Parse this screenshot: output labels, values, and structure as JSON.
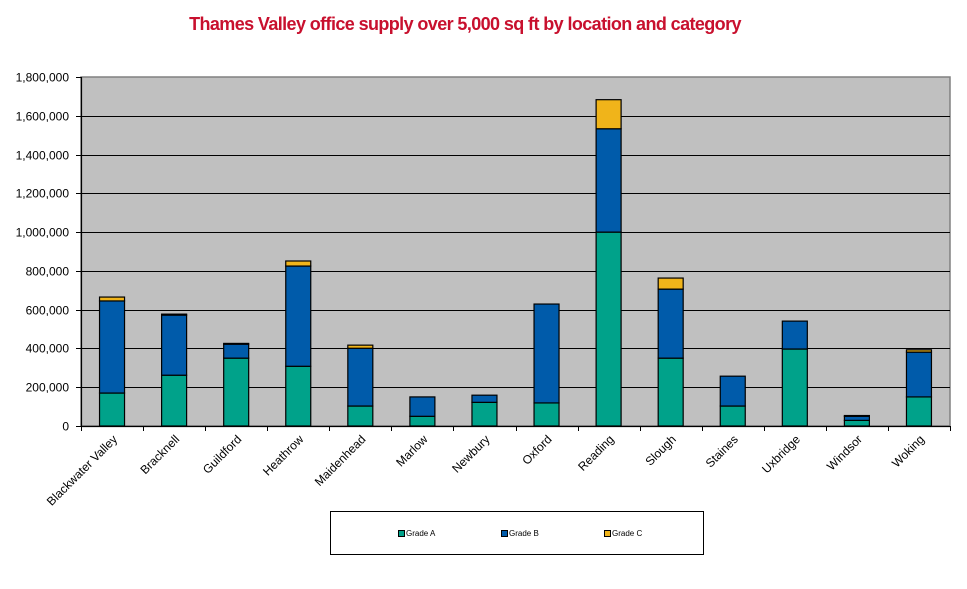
{
  "chart_data": {
    "type": "bar",
    "stacked": true,
    "title": "Thames Valley office supply over 5,000 sq ft by location and category",
    "xlabel": "",
    "ylabel": "",
    "ylim": [
      0,
      1800000
    ],
    "yticks": [
      0,
      200000,
      400000,
      600000,
      800000,
      1000000,
      1200000,
      1400000,
      1600000,
      1800000
    ],
    "ytick_labels": [
      "0",
      "200,000",
      "400,000",
      "600,000",
      "800,000",
      "1,000,000",
      "1,200,000",
      "1,400,000",
      "1,600,000",
      "1,800,000"
    ],
    "grid": true,
    "legend_position": "bottom",
    "categories": [
      "Blackwater Valley",
      "Bracknell",
      "Guildford",
      "Heathrow",
      "Maidenhead",
      "Marlow",
      "Newbury",
      "Oxford",
      "Reading",
      "Slough",
      "Staines",
      "Uxbridge",
      "Windsor",
      "Woking"
    ],
    "series": [
      {
        "name": "Grade A",
        "color": "#00A28A",
        "values": [
          170000,
          262000,
          350000,
          308000,
          103000,
          50000,
          122000,
          119000,
          1000000,
          350000,
          103000,
          397000,
          29000,
          150000
        ]
      },
      {
        "name": "Grade B",
        "color": "#005BAA",
        "values": [
          475000,
          310000,
          72000,
          517000,
          298000,
          100000,
          37000,
          510000,
          533000,
          356000,
          154000,
          144000,
          21000,
          231000
        ]
      },
      {
        "name": "Grade C",
        "color": "#F0B41A",
        "values": [
          20000,
          5000,
          4000,
          26000,
          16000,
          0,
          0,
          0,
          150000,
          57000,
          0,
          0,
          4000,
          12000
        ]
      }
    ]
  },
  "colors": {
    "title": "#C8102E",
    "plot_background": "#C0C0C0",
    "gridline": "#000000"
  },
  "legend": {
    "items": [
      {
        "label": "Grade A",
        "color": "#00A28A"
      },
      {
        "label": "Grade B",
        "color": "#005BAA"
      },
      {
        "label": "Grade C",
        "color": "#F0B41A"
      }
    ]
  }
}
